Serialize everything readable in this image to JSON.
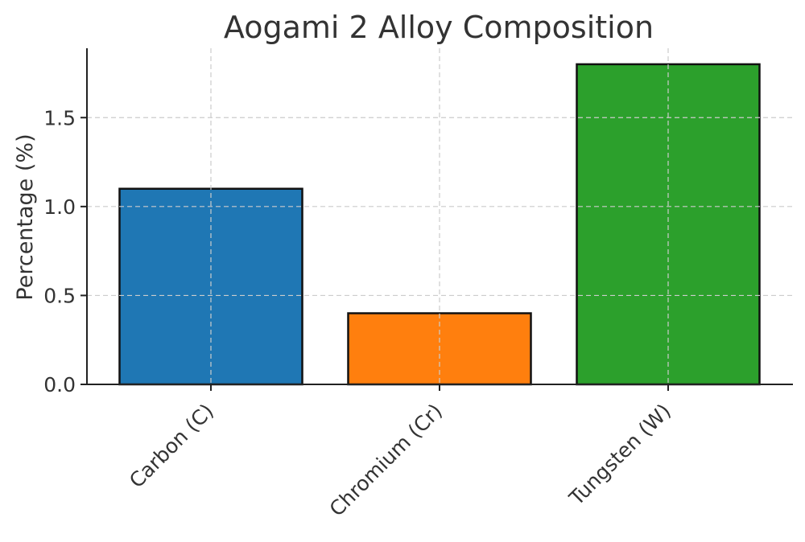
{
  "chart_data": {
    "type": "bar",
    "title": "Aogami 2 Alloy Composition",
    "xlabel": "",
    "ylabel": "Percentage (%)",
    "categories": [
      "Carbon (C)",
      "Chromium (Cr)",
      "Tungsten (W)"
    ],
    "values": [
      1.1,
      0.4,
      1.8
    ],
    "colors": [
      "#1f77b4",
      "#ff7f0e",
      "#2ca02c"
    ],
    "ylim": [
      0,
      1.89
    ],
    "yticks": [
      0.0,
      0.5,
      1.0,
      1.5
    ],
    "ytick_labels": [
      "0.0",
      "0.5",
      "1.0",
      "1.5"
    ],
    "grid": true,
    "legend": "none"
  }
}
